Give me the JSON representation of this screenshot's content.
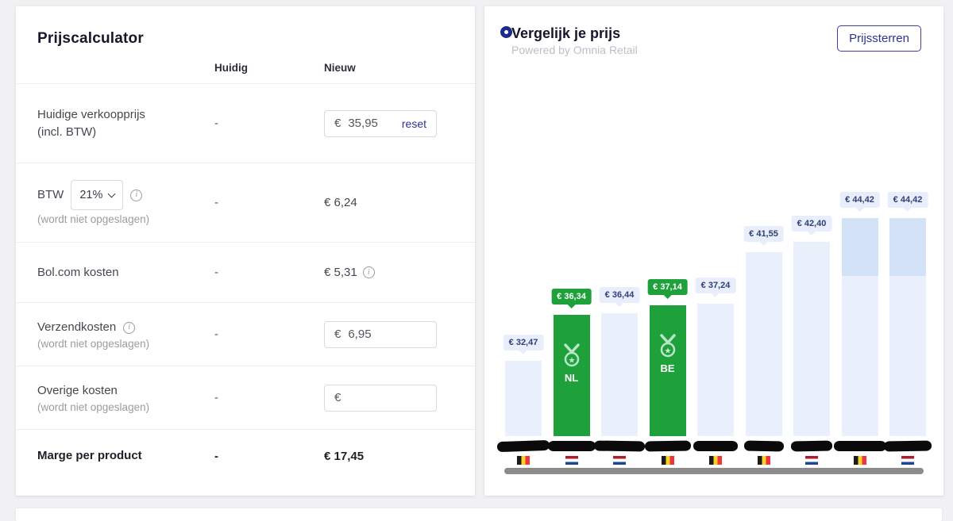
{
  "calculator": {
    "title": "Prijscalculator",
    "columns": {
      "current": "Huidig",
      "new": "Nieuw"
    },
    "rows": {
      "price": {
        "label": "Huidige verkoopprijs",
        "sublabel": "(incl. BTW)",
        "current": "-",
        "input": {
          "currency": "€",
          "value": "35,95"
        },
        "reset": "reset"
      },
      "vat": {
        "label": "BTW",
        "select_value": "21%",
        "sublabel": "(wordt niet opgeslagen)",
        "current": "-",
        "new": "€ 6,24"
      },
      "bol": {
        "label": "Bol.com kosten",
        "current": "-",
        "new": "€ 5,31"
      },
      "shipping": {
        "label": "Verzendkosten",
        "sublabel": "(wordt niet opgeslagen)",
        "current": "-",
        "input": {
          "currency": "€",
          "value": "6,95"
        }
      },
      "other": {
        "label": "Overige kosten",
        "sublabel": "(wordt niet opgeslagen)",
        "current": "-",
        "input": {
          "currency": "€",
          "value": ""
        }
      },
      "margin": {
        "label": "Marge per product",
        "current": "-",
        "new": "€ 17,45"
      }
    }
  },
  "comparison": {
    "title": "Vergelijk je prijs",
    "powered_by": "Powered by Omnia Retail",
    "button": "Prijssterren"
  },
  "chart_data": {
    "type": "bar",
    "title": "Vergelijk je prijs",
    "xlabel": "",
    "ylabel": "",
    "ylim": [
      26,
      46
    ],
    "legend_position": "none",
    "grid": false,
    "seller_names": "redacted",
    "series": [
      {
        "value": 32.47,
        "label": "€ 32,47",
        "country": "BE"
      },
      {
        "value": 36.34,
        "label": "€ 36,34",
        "country": "NL",
        "highlight": true,
        "badge": "NL"
      },
      {
        "value": 36.44,
        "label": "€ 36,44",
        "country": "NL"
      },
      {
        "value": 37.14,
        "label": "€ 37,14",
        "country": "BE",
        "highlight": true,
        "badge": "BE"
      },
      {
        "value": 37.24,
        "label": "€ 37,24",
        "country": "BE"
      },
      {
        "value": 41.55,
        "label": "€ 41,55",
        "country": "BE"
      },
      {
        "value": 42.4,
        "label": "€ 42,40",
        "country": "NL"
      },
      {
        "value": 44.42,
        "label": "€ 44,42",
        "country": "BE",
        "split": true,
        "split_boundary_value": 39.6
      },
      {
        "value": 44.42,
        "label": "€ 44,42",
        "country": "NL",
        "split": true,
        "split_boundary_value": 39.6
      }
    ],
    "colors": {
      "bar": "#e9f0fb",
      "bar_upper_segment": "#d4e2f7",
      "highlight": "#1ea13b",
      "callout_bg": "#e8eefb",
      "callout_text": "#2f3f77",
      "accent_navy": "#2c3390"
    }
  }
}
